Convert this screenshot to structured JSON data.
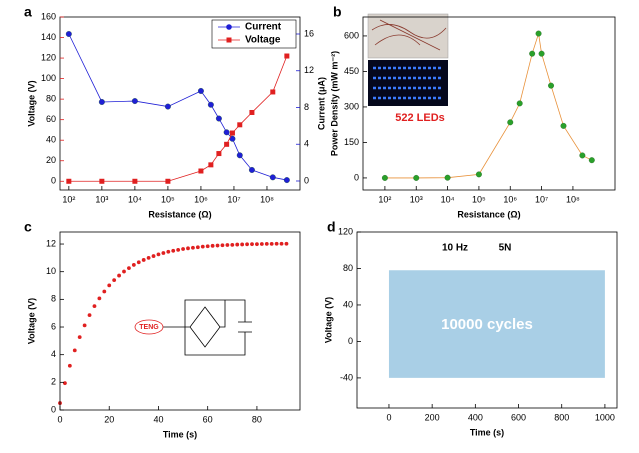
{
  "chart_data": [
    {
      "type": "line",
      "label": "a",
      "xlabel": "Resistance (Ω)",
      "ylabel": "Voltage (V)",
      "y2label": "Current (μA)",
      "ylabel_color": "#e02020",
      "y2label_color": "#1f1fd6",
      "xlog": true,
      "legend": "upper right",
      "x": [
        100,
        1000,
        10000,
        100000,
        1000000,
        2000000,
        3500000,
        6000000,
        9000000,
        15000000,
        35000000,
        150000000,
        400000000
      ],
      "series": [
        {
          "name": "Current",
          "color": "#1f1fd6",
          "marker": "circle",
          "axis": "y2",
          "values": [
            16,
            8.6,
            8.7,
            8.1,
            9.8,
            8.3,
            6.8,
            5.3,
            4.6,
            2.8,
            1.2,
            0.4,
            0.1
          ]
        },
        {
          "name": "Voltage",
          "color": "#e02020",
          "marker": "square",
          "axis": "y",
          "values": [
            0,
            0,
            0,
            0,
            10,
            16,
            27,
            36,
            47,
            55,
            67,
            87,
            122
          ]
        }
      ],
      "xlim": [
        54,
        1000000000
      ],
      "xticks": [
        {
          "value": 100,
          "label": "10²"
        },
        {
          "value": 1000,
          "label": "10³"
        },
        {
          "value": 10000,
          "label": "10⁴"
        },
        {
          "value": 100000,
          "label": "10⁵"
        },
        {
          "value": 1000000,
          "label": "10⁶"
        },
        {
          "value": 10000000,
          "label": "10⁷"
        },
        {
          "value": 100000000,
          "label": "10⁸"
        }
      ],
      "ylim": [
        -8.5,
        160
      ],
      "yticks": [
        0,
        20,
        40,
        60,
        80,
        100,
        120,
        140,
        160
      ],
      "y2lim": [
        -0.98,
        17.85
      ],
      "y2ticks": [
        0,
        4,
        8,
        12,
        16
      ]
    },
    {
      "type": "line",
      "label": "b",
      "xlabel": "Resistance (Ω)",
      "ylabel": "Power Density (mW m⁻²)",
      "xlog": true,
      "annotations": [
        "522 LEDs"
      ],
      "x": [
        100,
        1000,
        10000,
        100000,
        1000000,
        2000000,
        5000000,
        8000000,
        10000000,
        20000000,
        50000000,
        200000000,
        400000000
      ],
      "series": [
        {
          "color": "#2aa02a",
          "line_color": "#e8913a",
          "marker": "circle",
          "values": [
            0,
            0,
            1,
            15,
            235,
            315,
            525,
            610,
            525,
            390,
            220,
            95,
            75
          ]
        }
      ],
      "xlim": [
        20,
        2200000000
      ],
      "xticks": [
        {
          "value": 100,
          "label": "10²"
        },
        {
          "value": 1000,
          "label": "10³"
        },
        {
          "value": 10000,
          "label": "10⁴"
        },
        {
          "value": 100000,
          "label": "10⁵"
        },
        {
          "value": 1000000,
          "label": "10⁶"
        },
        {
          "value": 10000000,
          "label": "10⁷"
        },
        {
          "value": 100000000,
          "label": "10⁸"
        }
      ],
      "ylim": [
        -51,
        680
      ],
      "yticks": [
        0,
        150,
        300,
        450,
        600
      ]
    },
    {
      "type": "scatter",
      "label": "c",
      "xlabel": "Time (s)",
      "ylabel": "Voltage (V)",
      "annotations": [
        "TENG"
      ],
      "x": [
        0,
        2,
        4,
        6,
        8,
        10,
        12,
        14,
        16,
        18,
        20,
        22,
        24,
        26,
        28,
        30,
        32,
        34,
        36,
        38,
        40,
        42,
        44,
        46,
        48,
        50,
        52,
        54,
        56,
        58,
        60,
        62,
        64,
        66,
        68,
        70,
        72,
        74,
        76,
        78,
        80,
        82,
        84,
        86,
        88,
        90,
        92
      ],
      "series": [
        {
          "color": "#e02020",
          "marker": "circle",
          "values": [
            0.5,
            1.94,
            3.2,
            4.31,
            5.27,
            6.12,
            6.86,
            7.51,
            8.07,
            8.57,
            9.01,
            9.39,
            9.72,
            10.01,
            10.26,
            10.49,
            10.68,
            10.85,
            11.0,
            11.13,
            11.25,
            11.35,
            11.44,
            11.51,
            11.58,
            11.64,
            11.69,
            11.73,
            11.77,
            11.81,
            11.84,
            11.87,
            11.89,
            11.91,
            11.93,
            11.94,
            11.96,
            11.97,
            11.98,
            11.99,
            11.99,
            12.0,
            12.01,
            12.01,
            12.02,
            12.02,
            12.02
          ]
        }
      ],
      "xlim": [
        0,
        97.5
      ],
      "xticks": [
        0,
        20,
        40,
        60,
        80
      ],
      "ylim": [
        0,
        12.87
      ],
      "yticks": [
        0,
        2,
        4,
        6,
        8,
        10,
        12
      ]
    },
    {
      "type": "band",
      "label": "d",
      "xlabel": "Time (s)",
      "ylabel": "Voltage (V)",
      "annotations": [
        "10 Hz",
        "5N",
        "10000 cycles"
      ],
      "x": [
        0,
        1000
      ],
      "upper": [
        78,
        78
      ],
      "lower": [
        -40,
        -40
      ],
      "color": "#a9cfe6",
      "xlim": [
        -148,
        1056
      ],
      "xticks": [
        0,
        200,
        400,
        600,
        800,
        1000
      ],
      "ylim": [
        -73,
        120
      ],
      "yticks": [
        -40,
        0,
        40,
        80,
        120
      ]
    }
  ]
}
